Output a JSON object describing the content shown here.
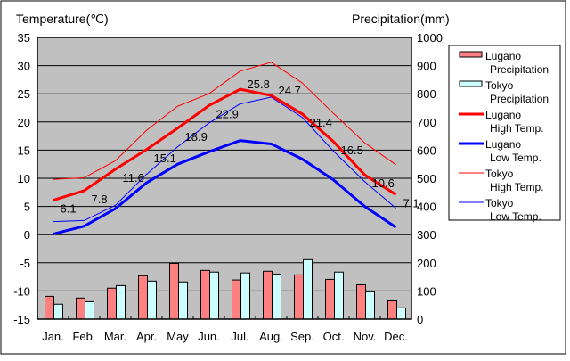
{
  "chart_data": {
    "type": "bar+line",
    "left_axis_title": "Temperature(℃)",
    "right_axis_title": "Precipitation(mm)",
    "ylim": [
      -15,
      35
    ],
    "y2lim": [
      0,
      1000
    ],
    "yticks": [
      "35",
      "30",
      "25",
      "20",
      "15",
      "10",
      "5",
      "0",
      "-5",
      "-10",
      "-15"
    ],
    "y2ticks": [
      "1000",
      "900",
      "800",
      "700",
      "600",
      "500",
      "400",
      "300",
      "200",
      "100",
      "0"
    ],
    "categories": [
      "Jan.",
      "Feb.",
      "Mar.",
      "Apr.",
      "May",
      "Jun.",
      "Jul.",
      "Aug.",
      "Sep.",
      "Oct.",
      "Nov.",
      "Dec."
    ],
    "grid": true,
    "legend_position": "right",
    "series": [
      {
        "name": "Lugano Precipitation",
        "legend": [
          "Lugano",
          "Precipitation"
        ],
        "kind": "bar",
        "axis": "right",
        "color": "#ff8080",
        "values": [
          81,
          75,
          110,
          154,
          198,
          173,
          139,
          170,
          157,
          141,
          122,
          65
        ]
      },
      {
        "name": "Tokyo Precipitation",
        "legend": [
          "Tokyo",
          "Precipitation"
        ],
        "kind": "bar",
        "axis": "right",
        "color": "#ccffff",
        "values": [
          53,
          62,
          119,
          135,
          132,
          167,
          164,
          160,
          211,
          167,
          97,
          40
        ]
      },
      {
        "name": "Lugano High Temp.",
        "legend": [
          "Lugano",
          "High Temp."
        ],
        "kind": "line",
        "axis": "left",
        "color": "#ff0000",
        "width": 3,
        "values": [
          6.1,
          7.8,
          11.6,
          15.1,
          18.9,
          22.9,
          25.8,
          24.7,
          21.4,
          16.5,
          10.6,
          7.1
        ],
        "labels": [
          "6.1",
          "7.8",
          "11.6",
          "15.1",
          "18.9",
          "22.9",
          "25.8",
          "24.7",
          "21.4",
          "16.5",
          "10.6",
          "7.1"
        ]
      },
      {
        "name": "Lugano Low Temp.",
        "legend": [
          "Lugano",
          "Low Temp."
        ],
        "kind": "line",
        "axis": "left",
        "color": "#0000ff",
        "width": 3,
        "values": [
          0.1,
          1.5,
          4.6,
          9.2,
          12.5,
          14.7,
          16.7,
          16.1,
          13.4,
          9.7,
          5.0,
          1.3
        ]
      },
      {
        "name": "Tokyo High Temp.",
        "legend": [
          "Tokyo",
          "High Temp."
        ],
        "kind": "line",
        "axis": "left",
        "color": "#ff0000",
        "width": 1,
        "values": [
          9.8,
          10.1,
          13.1,
          18.5,
          22.8,
          25.0,
          29.0,
          30.6,
          26.9,
          21.5,
          16.3,
          12.4
        ]
      },
      {
        "name": "Tokyo Low Temp.",
        "legend": [
          "Tokyo",
          "Low Temp."
        ],
        "kind": "line",
        "axis": "left",
        "color": "#0000ff",
        "width": 1,
        "values": [
          2.3,
          2.5,
          5.2,
          10.7,
          15.6,
          19.8,
          23.2,
          24.4,
          20.8,
          14.8,
          9.4,
          4.7
        ]
      }
    ]
  }
}
